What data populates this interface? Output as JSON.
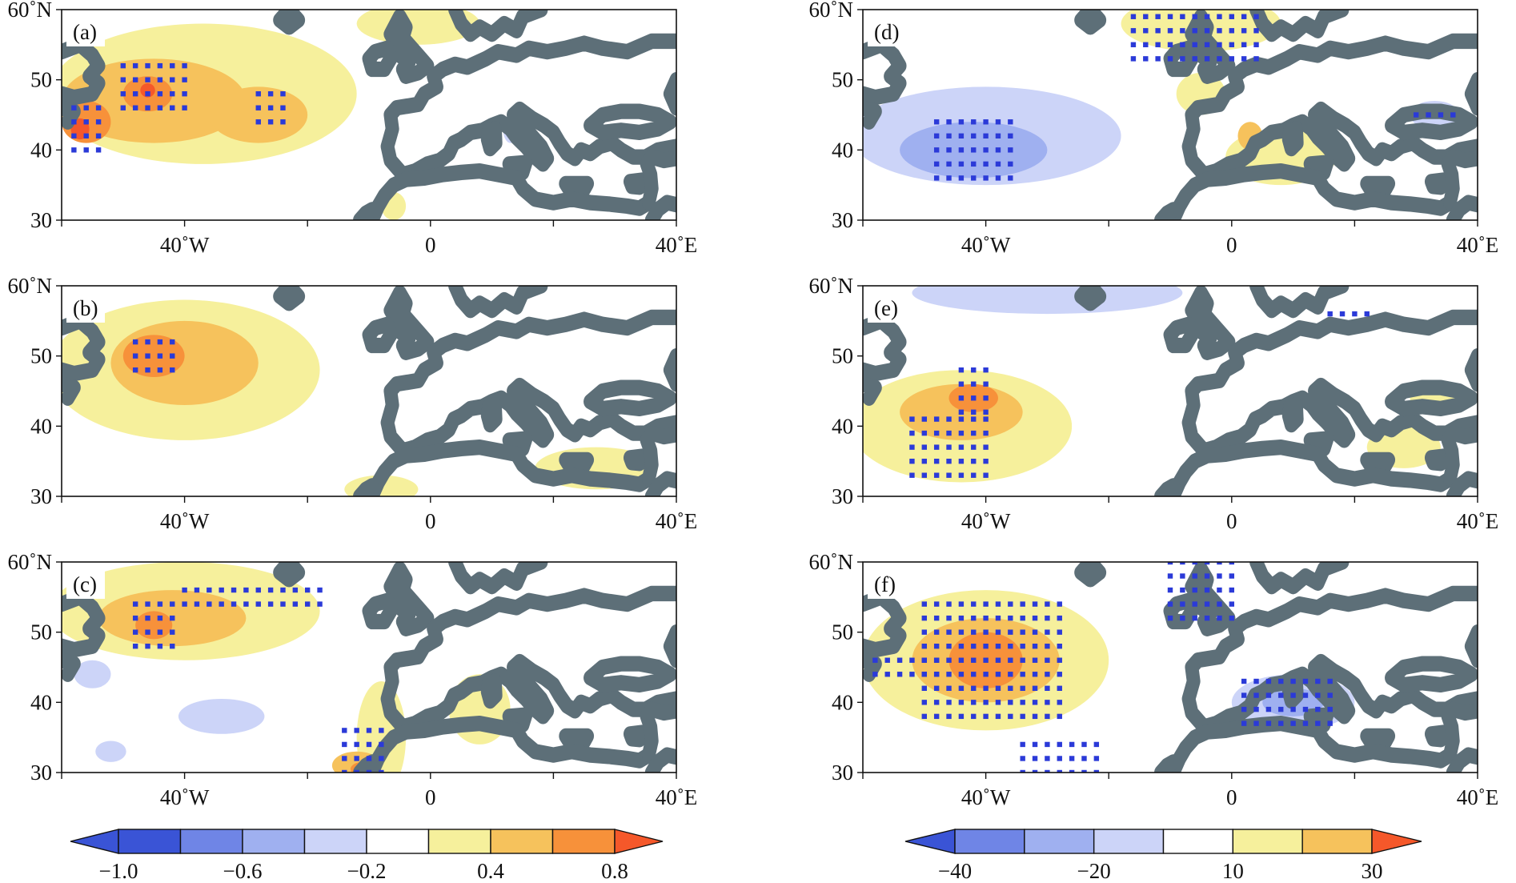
{
  "colors": {
    "neg4": "#3a54d6",
    "neg3": "#6f85e6",
    "neg2": "#9fb0f0",
    "neg1": "#ccd4f8",
    "zero": "#ffffff",
    "pos1": "#f6f09c",
    "pos2": "#f6c25c",
    "pos3": "#f7913a",
    "pos4": "#f5582a",
    "dots": "#2b3ad8",
    "coast": "#5d6f78"
  },
  "chart_data": {
    "type": "heatmap",
    "map": {
      "lon_range": [
        -60,
        40
      ],
      "lat_range": [
        30,
        60
      ],
      "x_ticks": [
        {
          "lon": -40,
          "label": "40˚W"
        },
        {
          "lon": 0,
          "label": "0"
        },
        {
          "lon": 40,
          "label": "40˚E"
        }
      ],
      "y_ticks": [
        {
          "lat": 60,
          "label": "60˚N"
        },
        {
          "lat": 50,
          "label": "50"
        },
        {
          "lat": 40,
          "label": "40"
        },
        {
          "lat": 30,
          "label": "30"
        }
      ],
      "minor_x_ticks": [
        -60,
        -40,
        -20,
        0,
        20,
        40
      ],
      "significance_marker": "dots"
    },
    "panels": [
      {
        "label": "(a)",
        "colorbar": "left",
        "blobs": [
          {
            "level": 1,
            "lon": -37,
            "lat": 48,
            "rlon": 25,
            "rlat": 10
          },
          {
            "level": 1,
            "lon": -2,
            "lat": 58,
            "rlon": 10,
            "rlat": 3
          },
          {
            "level": 1,
            "lon": -6,
            "lat": 32,
            "rlon": 2,
            "rlat": 2
          },
          {
            "level": 2,
            "lon": -45,
            "lat": 47,
            "rlon": 15,
            "rlat": 6
          },
          {
            "level": 2,
            "lon": -28,
            "lat": 45,
            "rlon": 8,
            "rlat": 4
          },
          {
            "level": 3,
            "lon": -56,
            "lat": 44,
            "rlon": 4,
            "rlat": 3
          },
          {
            "level": 3,
            "lon": -46,
            "lat": 48,
            "rlon": 4,
            "rlat": 2.5
          },
          {
            "level": 4,
            "lon": -57,
            "lat": 43,
            "rlon": 1.5,
            "rlat": 1.5
          },
          {
            "level": 4,
            "lon": -46,
            "lat": 48.5,
            "rlon": 1.2,
            "rlat": 1
          },
          {
            "level": -1,
            "lon": 13,
            "lat": 43,
            "rlon": 1.2,
            "rlat": 2
          }
        ],
        "dots": [
          {
            "lon0": -58,
            "lon1": -54,
            "lat0": 40,
            "lat1": 46
          },
          {
            "lon0": -50,
            "lon1": -40,
            "lat0": 46,
            "lat1": 52
          },
          {
            "lon0": -28,
            "lon1": -24,
            "lat0": 44,
            "lat1": 48
          }
        ]
      },
      {
        "label": "(b)",
        "colorbar": "left",
        "blobs": [
          {
            "level": 1,
            "lon": -40,
            "lat": 48,
            "rlon": 22,
            "rlat": 10
          },
          {
            "level": 1,
            "lon": -8,
            "lat": 31,
            "rlon": 6,
            "rlat": 2
          },
          {
            "level": 1,
            "lon": 27,
            "lat": 34,
            "rlon": 10,
            "rlat": 3
          },
          {
            "level": 2,
            "lon": -40,
            "lat": 49,
            "rlon": 12,
            "rlat": 6
          },
          {
            "level": 3,
            "lon": -45,
            "lat": 50,
            "rlon": 5,
            "rlat": 3
          },
          {
            "level": -1,
            "lon": 14,
            "lat": 44,
            "rlon": 1.2,
            "rlat": 1.5
          }
        ],
        "dots": [
          {
            "lon0": -48,
            "lon1": -42,
            "lat0": 48,
            "lat1": 52
          }
        ]
      },
      {
        "label": "(c)",
        "colorbar": "left",
        "blobs": [
          {
            "level": 1,
            "lon": -40,
            "lat": 53,
            "rlon": 22,
            "rlat": 7
          },
          {
            "level": 1,
            "lon": -8,
            "lat": 35,
            "rlon": 4,
            "rlat": 8
          },
          {
            "level": 1,
            "lon": 8,
            "lat": 39,
            "rlon": 5,
            "rlat": 5
          },
          {
            "level": 2,
            "lon": -42,
            "lat": 52,
            "rlon": 12,
            "rlat": 4
          },
          {
            "level": 2,
            "lon": -12,
            "lat": 31,
            "rlon": 4,
            "rlat": 2
          },
          {
            "level": 3,
            "lon": -45,
            "lat": 51,
            "rlon": 3,
            "rlat": 2
          },
          {
            "level": 3,
            "lon": -11,
            "lat": 30.5,
            "rlon": 2,
            "rlat": 1
          },
          {
            "level": -1,
            "lon": -55,
            "lat": 44,
            "rlon": 3,
            "rlat": 2
          },
          {
            "level": -1,
            "lon": -34,
            "lat": 38,
            "rlon": 7,
            "rlat": 2.5
          },
          {
            "level": -1,
            "lon": -52,
            "lat": 33,
            "rlon": 2.5,
            "rlat": 1.5
          }
        ],
        "dots": [
          {
            "lon0": -48,
            "lon1": -42,
            "lat0": 48,
            "lat1": 54
          },
          {
            "lon0": -40,
            "lon1": -18,
            "lat0": 54,
            "lat1": 56
          },
          {
            "lon0": -14,
            "lon1": -8,
            "lat0": 30,
            "lat1": 36
          }
        ]
      },
      {
        "label": "(d)",
        "colorbar": "right",
        "blobs": [
          {
            "level": 1,
            "lon": -5,
            "lat": 58,
            "rlon": 13,
            "rlat": 4
          },
          {
            "level": 1,
            "lon": -5,
            "lat": 48,
            "rlon": 4,
            "rlat": 3
          },
          {
            "level": 1,
            "lon": 8,
            "lat": 39,
            "rlon": 9,
            "rlat": 4
          },
          {
            "level": 2,
            "lon": 3,
            "lat": 42,
            "rlon": 2,
            "rlat": 2
          },
          {
            "level": -1,
            "lon": -40,
            "lat": 42,
            "rlon": 22,
            "rlat": 7
          },
          {
            "level": -1,
            "lon": 33,
            "lat": 45,
            "rlon": 4,
            "rlat": 2
          },
          {
            "level": -2,
            "lon": -42,
            "lat": 40,
            "rlon": 12,
            "rlat": 4
          }
        ],
        "dots": [
          {
            "lon0": -16,
            "lon1": 4,
            "lat0": 53,
            "lat1": 60
          },
          {
            "lon0": -48,
            "lon1": -36,
            "lat0": 36,
            "lat1": 44
          },
          {
            "lon0": 30,
            "lon1": 36,
            "lat0": 45,
            "lat1": 46
          }
        ]
      },
      {
        "label": "(e)",
        "colorbar": "right",
        "blobs": [
          {
            "level": 1,
            "lon": -44,
            "lat": 40,
            "rlon": 18,
            "rlat": 8
          },
          {
            "level": 1,
            "lon": 34,
            "lat": 44,
            "rlon": 5,
            "rlat": 2
          },
          {
            "level": 1,
            "lon": 28,
            "lat": 37,
            "rlon": 6,
            "rlat": 3
          },
          {
            "level": 2,
            "lon": -44,
            "lat": 42,
            "rlon": 10,
            "rlat": 4
          },
          {
            "level": 3,
            "lon": -42,
            "lat": 44,
            "rlon": 4,
            "rlat": 2
          },
          {
            "level": -1,
            "lon": -30,
            "lat": 59,
            "rlon": 22,
            "rlat": 3
          }
        ],
        "dots": [
          {
            "lon0": -52,
            "lon1": -40,
            "lat0": 33,
            "lat1": 42
          },
          {
            "lon0": -44,
            "lon1": -40,
            "lat0": 42,
            "lat1": 48
          },
          {
            "lon0": 16,
            "lon1": 22,
            "lat0": 56,
            "lat1": 57
          }
        ]
      },
      {
        "label": "(f)",
        "colorbar": "right",
        "blobs": [
          {
            "level": 1,
            "lon": -40,
            "lat": 46,
            "rlon": 20,
            "rlat": 10
          },
          {
            "level": 2,
            "lon": -40,
            "lat": 46,
            "rlon": 12,
            "rlat": 6
          },
          {
            "level": 3,
            "lon": -40,
            "lat": 46,
            "rlon": 6,
            "rlat": 4
          },
          {
            "level": -1,
            "lon": 10,
            "lat": 40,
            "rlon": 10,
            "rlat": 4
          },
          {
            "level": -2,
            "lon": 10,
            "lat": 40,
            "rlon": 5,
            "rlat": 2
          }
        ],
        "dots": [
          {
            "lon0": -50,
            "lon1": -28,
            "lat0": 38,
            "lat1": 54
          },
          {
            "lon0": -58,
            "lon1": -48,
            "lat0": 44,
            "lat1": 47
          },
          {
            "lon0": -34,
            "lon1": -22,
            "lat0": 30,
            "lat1": 35
          },
          {
            "lon0": -10,
            "lon1": 0,
            "lat0": 52,
            "lat1": 60
          },
          {
            "lon0": 2,
            "lon1": 16,
            "lat0": 37,
            "lat1": 43
          }
        ]
      }
    ],
    "colorbars": [
      {
        "id": "left",
        "labels": [
          "−1.0",
          "−0.6",
          "−0.2",
          "0.4",
          "0.8"
        ],
        "boundaries": [
          -1.0,
          -0.8,
          -0.6,
          -0.4,
          -0.2,
          0.2,
          0.4,
          0.6,
          0.8
        ],
        "label_boundary_index": [
          0,
          2,
          4,
          6,
          8
        ]
      },
      {
        "id": "right",
        "labels": [
          "−40",
          "−20",
          "10",
          "30"
        ],
        "boundaries": [
          -40,
          -30,
          -20,
          -10,
          10,
          20,
          30
        ],
        "label_boundary_index": [
          0,
          2,
          4,
          6
        ]
      }
    ]
  }
}
